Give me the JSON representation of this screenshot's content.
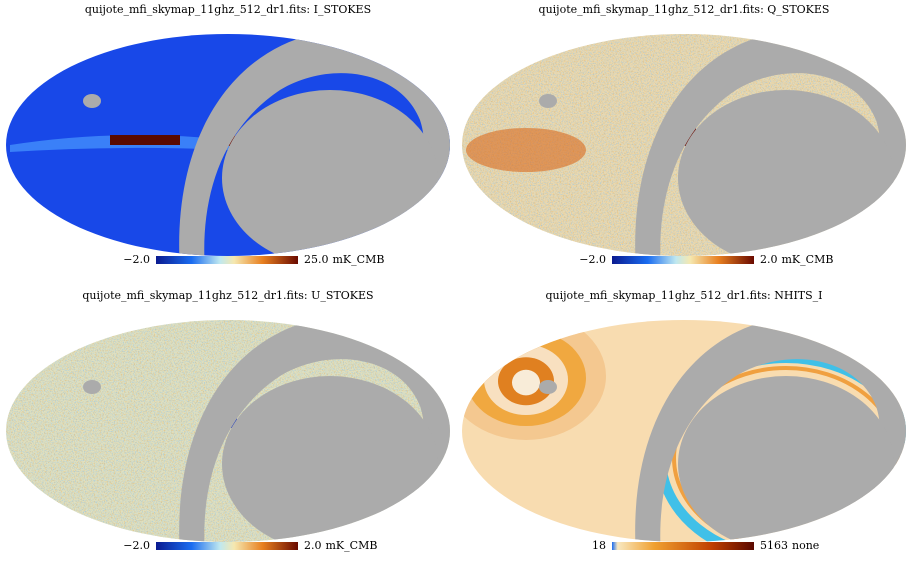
{
  "panels": [
    {
      "title": "quijote_mfi_skymap_11ghz_512_dr1.fits: I_STOKES",
      "min": "−2.0",
      "max": "25.0",
      "unit": "mK_CMB"
    },
    {
      "title": "quijote_mfi_skymap_11ghz_512_dr1.fits: Q_STOKES",
      "min": "−2.0",
      "max": "2.0",
      "unit": "mK_CMB"
    },
    {
      "title": "quijote_mfi_skymap_11ghz_512_dr1.fits: U_STOKES",
      "min": "−2.0",
      "max": "2.0",
      "unit": "mK_CMB"
    },
    {
      "title": "quijote_mfi_skymap_11ghz_512_dr1.fits: NHITS_I",
      "min": "18",
      "max": "5163",
      "unit": "none"
    }
  ]
}
